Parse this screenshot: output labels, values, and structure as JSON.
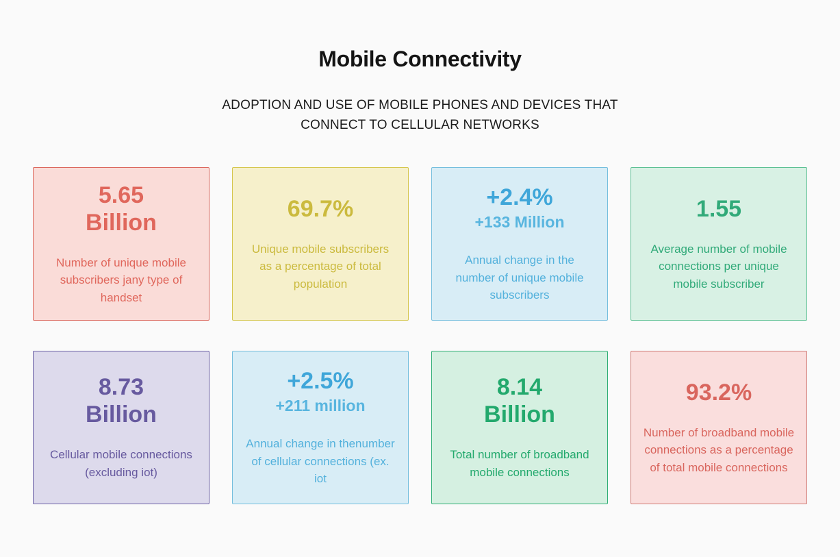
{
  "header": {
    "title": "Mobile Connectivity",
    "subtitle": "ADOPTION AND USE OF MOBILE PHONES AND DEVICES THAT CONNECT TO CELLULAR NETWORKS"
  },
  "cards": [
    {
      "id": "unique-subscribers",
      "value_line1": "5.65",
      "value_line2": "Billion",
      "subvalue": "",
      "description": "Number of unique mobile subscribers jany type of handset",
      "colors": {
        "bg": "#fadcd8",
        "border": "#db675d",
        "text": "#e0675c"
      }
    },
    {
      "id": "subscriber-penetration",
      "value_line1": "69.7%",
      "value_line2": "",
      "subvalue": "",
      "description": "Unique mobile subscribers as a percentage of total population",
      "colors": {
        "bg": "#f6f0cb",
        "border": "#d5c64d",
        "text": "#cbba3e"
      }
    },
    {
      "id": "subscriber-growth",
      "value_line1": "+2.4%",
      "value_line2": "",
      "subvalue": "+133 Million",
      "description": "Annual change in the number of unique mobile subscribers",
      "colors": {
        "bg": "#d8edf6",
        "border": "#74bedd",
        "text": "#3fa6d9",
        "subtext": "#58b5df",
        "desc": "#53b1dc"
      }
    },
    {
      "id": "connections-per-subscriber",
      "value_line1": "1.55",
      "value_line2": "",
      "subvalue": "",
      "description": "Average number of mobile connections per unique mobile subscriber",
      "colors": {
        "bg": "#d8f1e4",
        "border": "#5cc093",
        "text": "#31aa79"
      }
    },
    {
      "id": "cellular-connections",
      "value_line1": "8.73",
      "value_line2": "Billion",
      "subvalue": "",
      "description": "Cellular mobile connections (excluding iot)",
      "colors": {
        "bg": "#dddaec",
        "border": "#6a5fa5",
        "text": "#675a9f"
      }
    },
    {
      "id": "connections-growth",
      "value_line1": "+2.5%",
      "value_line2": "",
      "subvalue": "+211 million",
      "description": "Annual change in thenumber of cellular connections (ex. iot",
      "colors": {
        "bg": "#d8edf6",
        "border": "#74bedd",
        "text": "#3fa6d9",
        "subtext": "#58b5df",
        "desc": "#53b1dc"
      }
    },
    {
      "id": "broadband-connections",
      "value_line1": "8.14",
      "value_line2": "Billion",
      "subvalue": "",
      "description": "Total number of broadband mobile connections",
      "colors": {
        "bg": "#d5f0e1",
        "border": "#2ead74",
        "text": "#23a96d"
      }
    },
    {
      "id": "broadband-share",
      "value_line1": "93.2%",
      "value_line2": "",
      "subvalue": "",
      "description": "Number of broadband mobile connections as a percentage of total mobile connections",
      "colors": {
        "bg": "#fadedd",
        "border": "#cf7a74",
        "text": "#d9665e"
      }
    }
  ],
  "chart_data": {
    "type": "table",
    "title": "Mobile Connectivity",
    "subtitle": "ADOPTION AND USE OF MOBILE PHONES AND DEVICES THAT CONNECT TO CELLULAR NETWORKS",
    "layout": "4x2 stat-card grid",
    "metrics": [
      {
        "value": "5.65 Billion",
        "label": "Number of unique mobile subscribers jany type of handset",
        "accent": "#e0675c"
      },
      {
        "value": "69.7%",
        "label": "Unique mobile subscribers as a percentage of total population",
        "accent": "#cbba3e"
      },
      {
        "value": "+2.4%",
        "secondary_value": "+133 Million",
        "label": "Annual change in the number of unique mobile subscribers",
        "accent": "#3fa6d9"
      },
      {
        "value": "1.55",
        "label": "Average number of mobile connections per unique mobile subscriber",
        "accent": "#31aa79"
      },
      {
        "value": "8.73 Billion",
        "label": "Cellular mobile connections (excluding iot)",
        "accent": "#675a9f"
      },
      {
        "value": "+2.5%",
        "secondary_value": "+211 million",
        "label": "Annual change in thenumber of cellular connections (ex. iot",
        "accent": "#3fa6d9"
      },
      {
        "value": "8.14 Billion",
        "label": "Total number of broadband mobile connections",
        "accent": "#23a96d"
      },
      {
        "value": "93.2%",
        "label": "Number of broadband mobile connections as a percentage of total mobile connections",
        "accent": "#d9665e"
      }
    ]
  }
}
